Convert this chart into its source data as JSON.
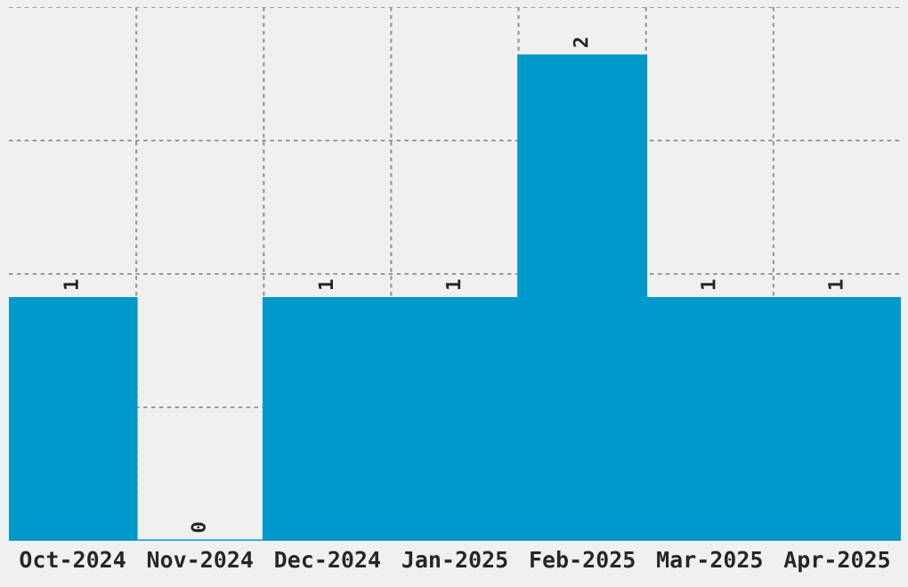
{
  "chart_data": {
    "type": "bar",
    "categories": [
      "Oct-2024",
      "Nov-2024",
      "Dec-2024",
      "Jan-2025",
      "Feb-2025",
      "Mar-2025",
      "Apr-2025"
    ],
    "values": [
      1,
      0,
      1,
      1,
      2,
      1,
      1
    ],
    "color": "#0099cc",
    "ylim": [
      0,
      2.2
    ],
    "yticks": [
      {
        "value": 0.55,
        "label": null
      },
      {
        "value": 1.1,
        "label": null
      },
      {
        "value": 1.65,
        "label": null
      },
      {
        "value": 2.2,
        "label": null
      }
    ],
    "grid": true,
    "data_labels": true
  }
}
